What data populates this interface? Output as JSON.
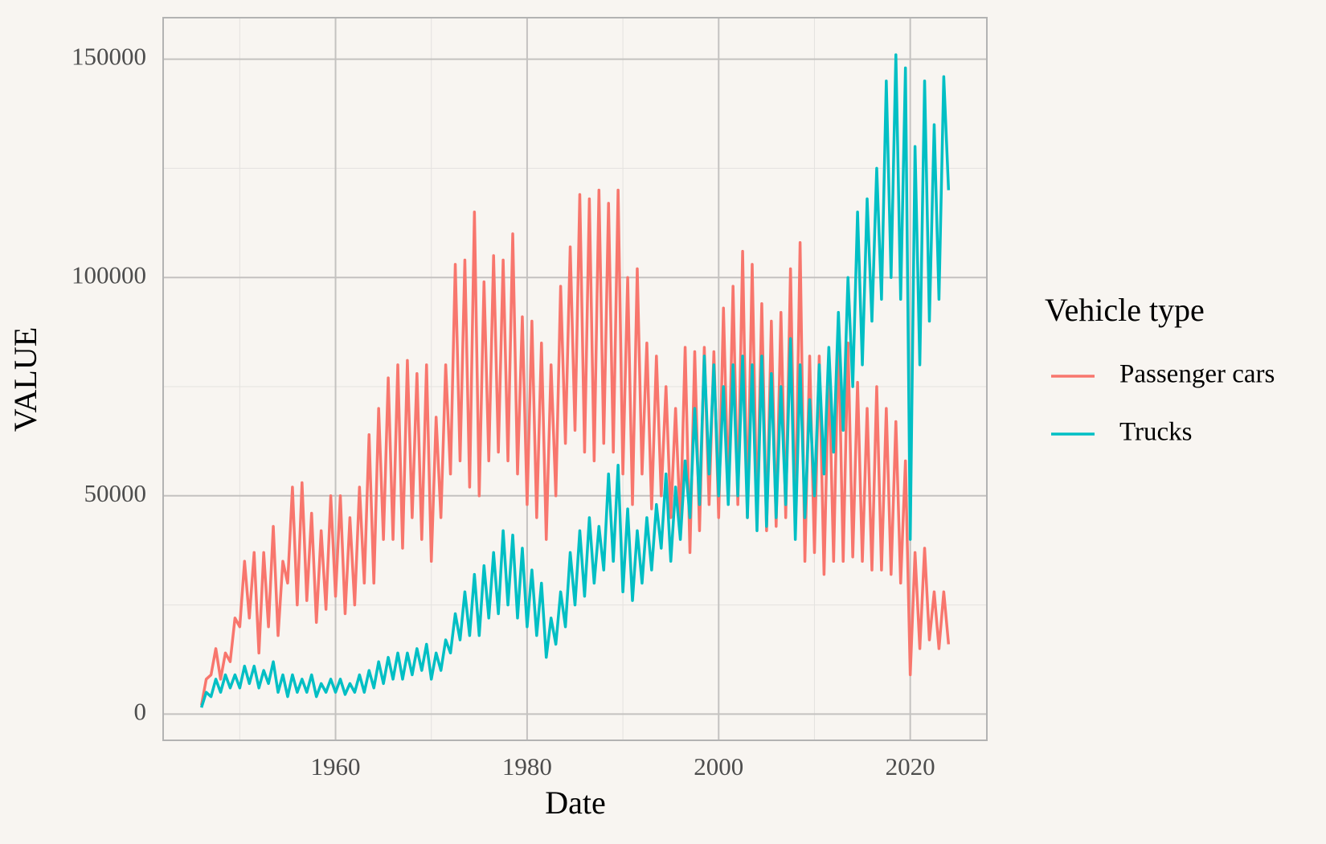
{
  "chart_data": {
    "type": "line",
    "x_label": "Date",
    "y_label": "VALUE",
    "legend_title": "Vehicle type",
    "legend_position": "right",
    "xlim": [
      1942,
      2028
    ],
    "ylim": [
      -6000,
      159500
    ],
    "xticks": [
      1960,
      1980,
      2000,
      2020
    ],
    "yticks": [
      0,
      50000,
      100000,
      150000
    ],
    "x_minor_grid": [
      1950,
      1970,
      1990,
      2010
    ],
    "y_minor_grid": [
      25000,
      75000,
      125000
    ],
    "grid": true,
    "x": [
      1946,
      1946.5,
      1947,
      1947.5,
      1948,
      1948.5,
      1949,
      1949.5,
      1950,
      1950.5,
      1951,
      1951.5,
      1952,
      1952.5,
      1953,
      1953.5,
      1954,
      1954.5,
      1955,
      1955.5,
      1956,
      1956.5,
      1957,
      1957.5,
      1958,
      1958.5,
      1959,
      1959.5,
      1960,
      1960.5,
      1961,
      1961.5,
      1962,
      1962.5,
      1963,
      1963.5,
      1964,
      1964.5,
      1965,
      1965.5,
      1966,
      1966.5,
      1967,
      1967.5,
      1968,
      1968.5,
      1969,
      1969.5,
      1970,
      1970.5,
      1971,
      1971.5,
      1972,
      1972.5,
      1973,
      1973.5,
      1974,
      1974.5,
      1975,
      1975.5,
      1976,
      1976.5,
      1977,
      1977.5,
      1978,
      1978.5,
      1979,
      1979.5,
      1980,
      1980.5,
      1981,
      1981.5,
      1982,
      1982.5,
      1983,
      1983.5,
      1984,
      1984.5,
      1985,
      1985.5,
      1986,
      1986.5,
      1987,
      1987.5,
      1988,
      1988.5,
      1989,
      1989.5,
      1990,
      1990.5,
      1991,
      1991.5,
      1992,
      1992.5,
      1993,
      1993.5,
      1994,
      1994.5,
      1995,
      1995.5,
      1996,
      1996.5,
      1997,
      1997.5,
      1998,
      1998.5,
      1999,
      1999.5,
      2000,
      2000.5,
      2001,
      2001.5,
      2002,
      2002.5,
      2003,
      2003.5,
      2004,
      2004.5,
      2005,
      2005.5,
      2006,
      2006.5,
      2007,
      2007.5,
      2008,
      2008.5,
      2009,
      2009.5,
      2010,
      2010.5,
      2011,
      2011.5,
      2012,
      2012.5,
      2013,
      2013.5,
      2014,
      2014.5,
      2015,
      2015.5,
      2016,
      2016.5,
      2017,
      2017.5,
      2018,
      2018.5,
      2019,
      2019.5,
      2020,
      2020.5,
      2021,
      2021.5,
      2022,
      2022.5,
      2023,
      2023.5,
      2024
    ],
    "series": [
      {
        "name": "Passenger cars",
        "color": "#F8766D",
        "values": [
          2000,
          8000,
          9000,
          15000,
          8000,
          14000,
          12000,
          22000,
          20000,
          35000,
          22000,
          37000,
          14000,
          37000,
          20000,
          43000,
          18000,
          35000,
          30000,
          52000,
          25000,
          53000,
          26000,
          46000,
          21000,
          42000,
          24000,
          50000,
          27000,
          50000,
          23000,
          45000,
          25000,
          52000,
          30000,
          64000,
          30000,
          70000,
          40000,
          77000,
          40000,
          80000,
          38000,
          81000,
          45000,
          78000,
          40000,
          80000,
          35000,
          68000,
          45000,
          80000,
          55000,
          103000,
          58000,
          104000,
          52000,
          115000,
          50000,
          99000,
          58000,
          105000,
          60000,
          104000,
          58000,
          110000,
          55000,
          91000,
          48000,
          90000,
          45000,
          85000,
          40000,
          80000,
          50000,
          98000,
          62000,
          107000,
          65000,
          119000,
          60000,
          118000,
          58000,
          120000,
          62000,
          117000,
          60000,
          120000,
          55000,
          100000,
          48000,
          102000,
          55000,
          85000,
          47000,
          82000,
          50000,
          75000,
          45000,
          70000,
          43000,
          84000,
          37000,
          83000,
          42000,
          84000,
          48000,
          83000,
          45000,
          93000,
          50000,
          98000,
          48000,
          106000,
          45000,
          103000,
          44000,
          94000,
          42000,
          90000,
          43000,
          92000,
          45000,
          102000,
          42000,
          108000,
          35000,
          82000,
          37000,
          82000,
          32000,
          80000,
          35000,
          88000,
          35000,
          85000,
          36000,
          76000,
          35000,
          70000,
          33000,
          75000,
          33000,
          70000,
          32000,
          67000,
          30000,
          58000,
          9000,
          37000,
          15000,
          38000,
          17000,
          28000,
          15000,
          28000,
          16000
        ]
      },
      {
        "name": "Trucks",
        "color": "#00BFC4",
        "values": [
          1500,
          5000,
          4000,
          8000,
          5000,
          9000,
          6000,
          9000,
          6000,
          11000,
          7000,
          11000,
          6000,
          10000,
          7000,
          12000,
          5000,
          9000,
          4000,
          9000,
          5000,
          8000,
          5000,
          9000,
          4000,
          7000,
          5000,
          8000,
          5000,
          8000,
          4500,
          7000,
          5000,
          9000,
          5000,
          10000,
          6000,
          12000,
          7000,
          13000,
          8000,
          14000,
          8000,
          14000,
          9000,
          15000,
          10000,
          16000,
          8000,
          14000,
          10000,
          17000,
          14000,
          23000,
          17000,
          28000,
          18000,
          32000,
          18000,
          34000,
          22000,
          37000,
          23000,
          42000,
          25000,
          41000,
          22000,
          38000,
          20000,
          33000,
          18000,
          30000,
          13000,
          22000,
          16000,
          28000,
          20000,
          37000,
          25000,
          42000,
          27000,
          45000,
          30000,
          43000,
          33000,
          55000,
          35000,
          57000,
          28000,
          47000,
          26000,
          42000,
          30000,
          45000,
          33000,
          48000,
          38000,
          55000,
          35000,
          52000,
          40000,
          58000,
          45000,
          70000,
          48000,
          82000,
          55000,
          80000,
          50000,
          75000,
          48000,
          80000,
          50000,
          82000,
          45000,
          80000,
          42000,
          82000,
          43000,
          78000,
          45000,
          75000,
          48000,
          86000,
          40000,
          80000,
          45000,
          72000,
          50000,
          80000,
          55000,
          84000,
          60000,
          92000,
          65000,
          100000,
          75000,
          115000,
          80000,
          118000,
          90000,
          125000,
          95000,
          145000,
          100000,
          151000,
          95000,
          148000,
          40000,
          130000,
          80000,
          145000,
          90000,
          135000,
          95000,
          146000,
          120000
        ]
      }
    ]
  }
}
